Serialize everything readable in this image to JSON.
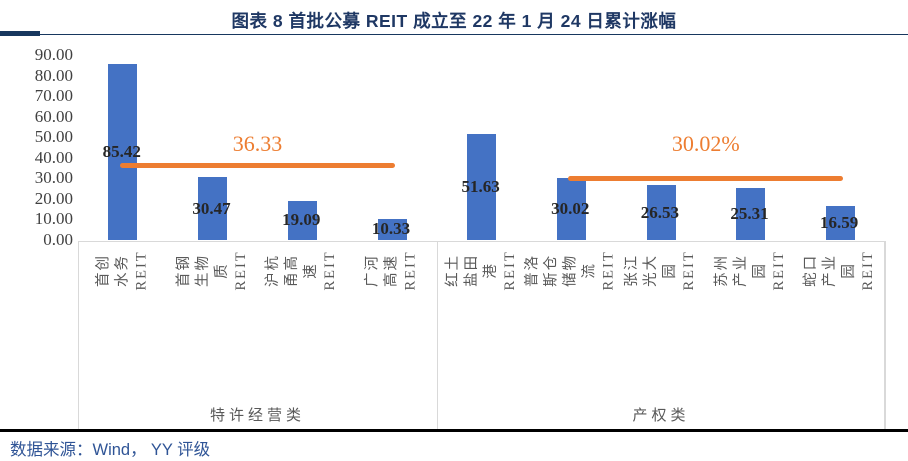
{
  "header": {
    "title": "图表 8 首批公募 REIT 成立至 22 年 1 月 24 日累计涨幅"
  },
  "footer": {
    "source": "数据来源：Wind， YY 评级"
  },
  "chart_data": {
    "type": "bar",
    "title": "图表 8 首批公募 REIT 成立至 22 年 1 月 24 日累计涨幅",
    "categories": [
      "首创水务REIT",
      "首钢生物质REIT",
      "沪杭甬高速REIT",
      "广河高速REIT",
      "红土盐田港REIT",
      "普洛斯仓储物流REIT",
      "张江光大园REIT",
      "苏州产业园REIT",
      "蛇口产业园REIT"
    ],
    "categories_display": [
      "首创水务REIT",
      "首钢生物质REIT",
      "沪杭甬高速REIT",
      "广河高速REIT",
      "红土盐田港REIT",
      "普洛斯仓储物流\nREIT",
      "张江光大园REIT",
      "苏州产业园REIT",
      "蛇口产业园REIT"
    ],
    "values": [
      85.42,
      30.47,
      19.09,
      10.33,
      51.63,
      30.02,
      26.53,
      25.31,
      16.59
    ],
    "value_labels": [
      "85.42",
      "30.47",
      "19.09",
      "10.33",
      "51.63",
      "30.02",
      "26.53",
      "25.31",
      "16.59"
    ],
    "groups": [
      {
        "label": "特许经营类",
        "count": 4
      },
      {
        "label": "产权类",
        "count": 5
      }
    ],
    "average_lines": [
      {
        "label": "36.33",
        "value": 36.33,
        "from_category": 0,
        "to_category": 3
      },
      {
        "label": "30.02%",
        "value": 30.02,
        "from_category": 5,
        "to_category": 8
      }
    ],
    "yticks": [
      "0.00",
      "10.00",
      "20.00",
      "30.00",
      "40.00",
      "50.00",
      "60.00",
      "70.00",
      "80.00",
      "90.00"
    ],
    "ylim": [
      0,
      90
    ],
    "ylabel": "",
    "xlabel": "",
    "grid": "off",
    "legend": "none",
    "colors": {
      "bar": "#4472C4",
      "average_line": "#ED7D31",
      "title": "#1F3864",
      "source_text": "#2F5496"
    }
  }
}
